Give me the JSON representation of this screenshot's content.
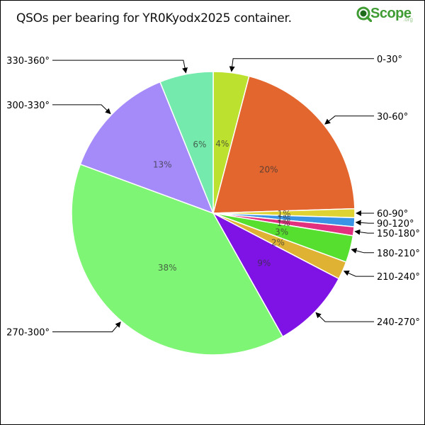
{
  "title": "QSOs per bearing for YR0Kyodx2025 container.",
  "logo": {
    "text": "Scope",
    "suffix": ".org",
    "icon": "magnifier-q-icon",
    "color": "#3f9c33"
  },
  "chart_data": {
    "type": "pie",
    "title": "QSOs per bearing for YR0Kyodx2025 container.",
    "start_angle_deg": 0,
    "direction": "clockwise",
    "legend": "callouts",
    "slices": [
      {
        "label": "0-30°",
        "value": 4,
        "pct_label": "4%",
        "color": "#bce12e"
      },
      {
        "label": "30-60°",
        "value": 20,
        "pct_label": "20%",
        "color": "#e4662f"
      },
      {
        "label": "60-90°",
        "value": 1,
        "pct_label": "1%",
        "color": "#dfd333"
      },
      {
        "label": "90-120°",
        "value": 1,
        "pct_label": "1%",
        "color": "#3a93e5"
      },
      {
        "label": "150-180°",
        "value": 1,
        "pct_label": "1%",
        "color": "#e2307e"
      },
      {
        "label": "180-210°",
        "value": 3,
        "pct_label": "3%",
        "color": "#57df30"
      },
      {
        "label": "210-240°",
        "value": 2,
        "pct_label": "2%",
        "color": "#e0b233"
      },
      {
        "label": "240-270°",
        "value": 9,
        "pct_label": "9%",
        "color": "#7f13e5"
      },
      {
        "label": "270-300°",
        "value": 38,
        "pct_label": "38%",
        "color": "#7ef574"
      },
      {
        "label": "300-330°",
        "value": 13,
        "pct_label": "13%",
        "color": "#a58bf9"
      },
      {
        "label": "330-360°",
        "value": 6,
        "pct_label": "6%",
        "color": "#74ebac"
      }
    ]
  }
}
